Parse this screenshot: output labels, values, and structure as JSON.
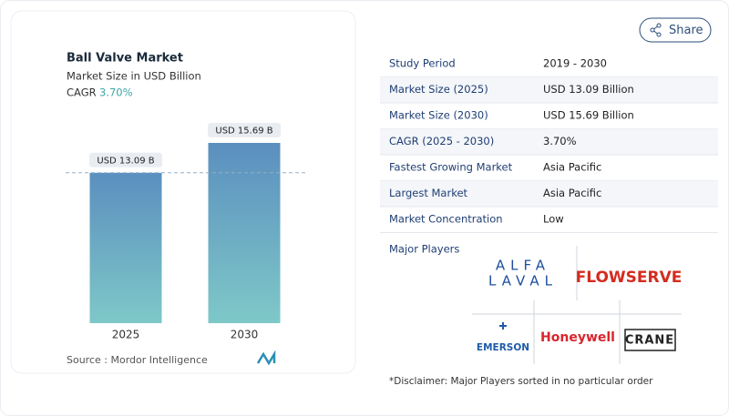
{
  "chart_data": {
    "type": "bar",
    "title": "Ball Valve Market",
    "subtitle": "Market Size in USD Billion",
    "cagr_label": "CAGR",
    "cagr_value": "3.70%",
    "categories": [
      "2025",
      "2030"
    ],
    "values": [
      13.09,
      15.69
    ],
    "value_labels": [
      "USD 13.09 B",
      "USD 15.69 B"
    ],
    "color": "#5b8fbf",
    "color_bottom": "#7ec8c8",
    "source": "Source :  Mordor Intelligence"
  },
  "share": "Share",
  "table": {
    "rows": [
      [
        "Study Period",
        "2019 - 2030"
      ],
      [
        "Market Size (2025)",
        "USD 13.09 Billion"
      ],
      [
        "Market Size (2030)",
        "USD 15.69 Billion"
      ],
      [
        "CAGR (2025 - 2030)",
        "3.70%"
      ],
      [
        "Fastest Growing Market",
        "Asia Pacific"
      ],
      [
        "Largest Market",
        "Asia Pacific"
      ],
      [
        "Market Concentration",
        "Low"
      ]
    ]
  },
  "major_players": {
    "label": "Major Players",
    "players": [
      {
        "lines": [
          "ALFA",
          "LAVAL"
        ]
      },
      {
        "lines": [
          "FLOWSERVE"
        ]
      },
      {
        "lines": [
          "EMERSON"
        ]
      },
      {
        "lines": [
          "Honeywell"
        ]
      },
      {
        "lines": [
          "CRANE"
        ]
      }
    ]
  },
  "disclaimer": "*Disclaimer: Major Players sorted in no particular order"
}
